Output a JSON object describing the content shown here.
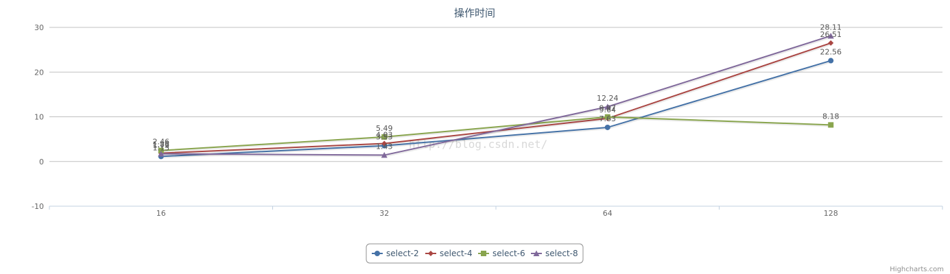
{
  "chart_data": {
    "type": "line",
    "title": "操作时间",
    "xlabel": "",
    "ylabel": "",
    "categories": [
      "16",
      "32",
      "64",
      "128"
    ],
    "ylim": [
      -10,
      30
    ],
    "yticks": [
      -10,
      0,
      10,
      20,
      30
    ],
    "grid": true,
    "legend_position": "bottom-center",
    "series": [
      {
        "name": "select-2",
        "color": "#4572A7",
        "marker": "circle",
        "values": [
          1.13,
          3.53,
          7.63,
          22.56
        ]
      },
      {
        "name": "select-4",
        "color": "#AA4643",
        "marker": "diamond",
        "values": [
          1.86,
          4.03,
          9.64,
          26.51
        ]
      },
      {
        "name": "select-6",
        "color": "#89A54E",
        "marker": "square",
        "values": [
          2.46,
          5.49,
          9.97,
          8.18
        ]
      },
      {
        "name": "select-8",
        "color": "#80699B",
        "marker": "triangle",
        "values": [
          1.72,
          1.43,
          12.24,
          28.11
        ]
      }
    ],
    "data_labels": [
      [
        "1.13",
        "3.53",
        "7.63",
        "22.56"
      ],
      [
        "1.86",
        "4.03",
        "9.64",
        "26.51"
      ],
      [
        "2.46",
        "5.49",
        "9.97",
        "8.18"
      ],
      [
        "1.72",
        "1.43",
        "12.24",
        "28.11"
      ]
    ]
  },
  "watermark_text": "http://blog.csdn.net/",
  "credits": "Highcharts.com"
}
